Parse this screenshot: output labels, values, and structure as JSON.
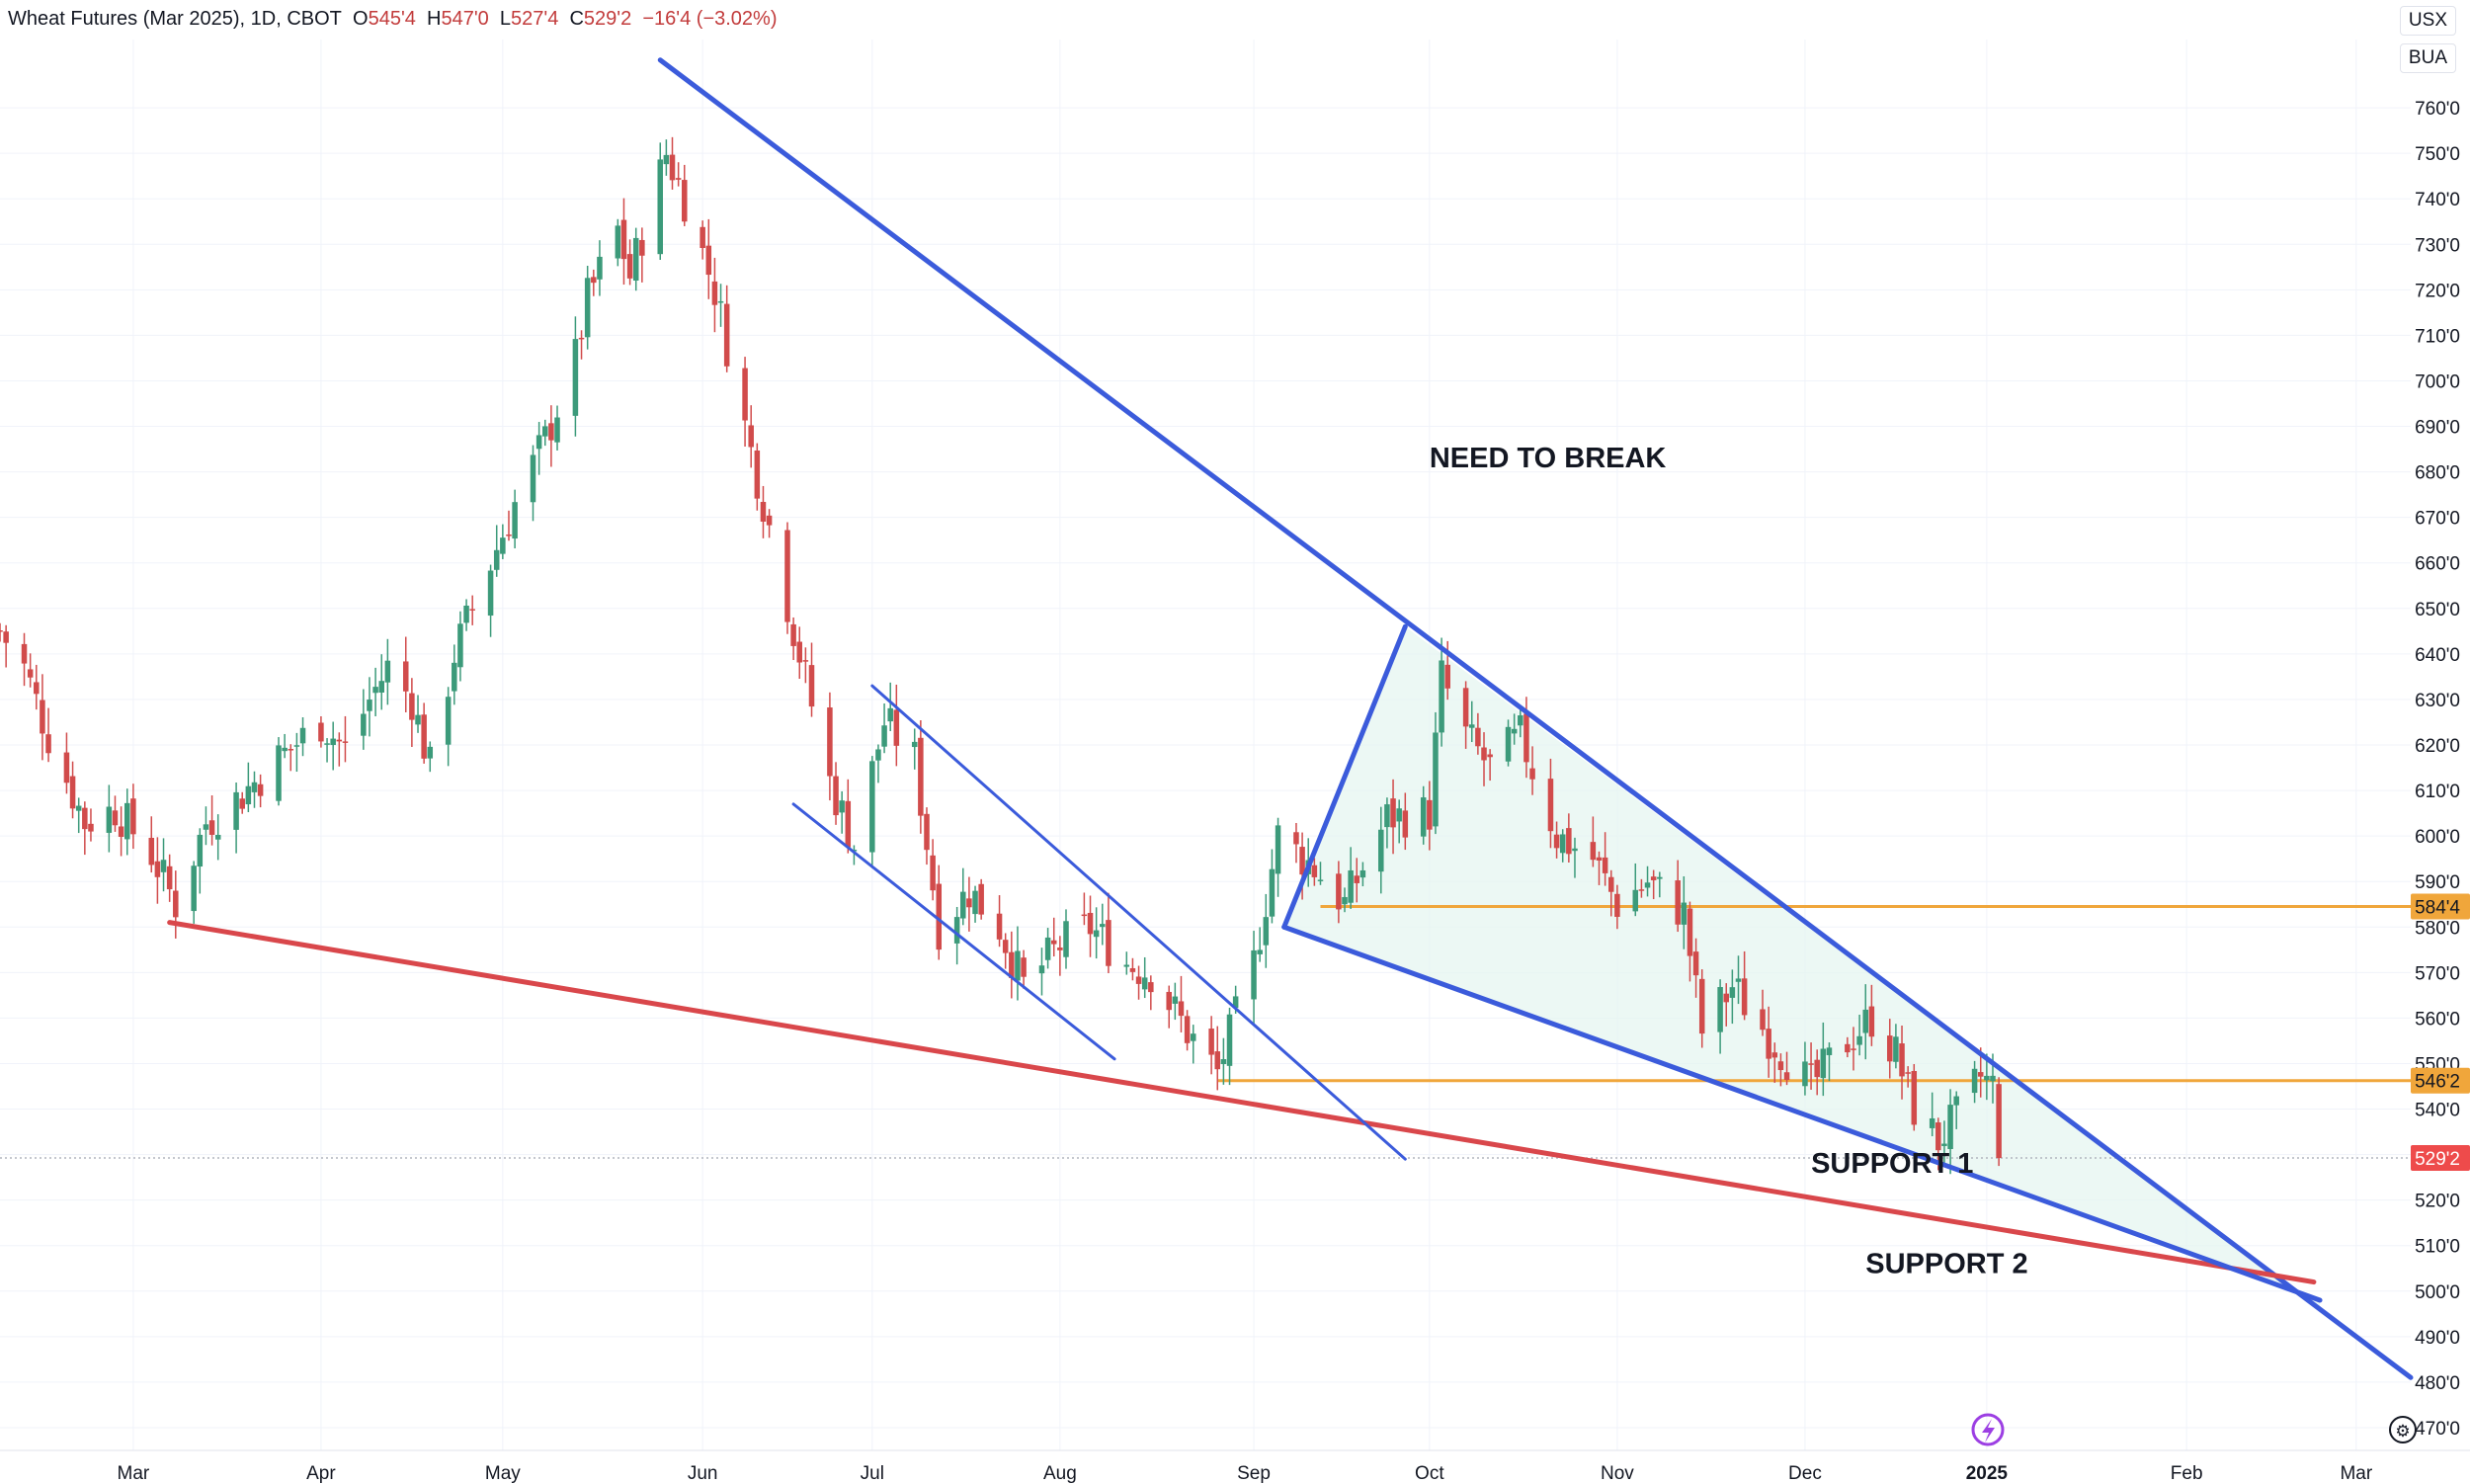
{
  "header": {
    "symbol": "Wheat Futures (Mar 2025), 1D, CBOT",
    "o_label": "O",
    "o_value": "545'4",
    "h_label": "H",
    "h_value": "547'0",
    "l_label": "L",
    "l_value": "527'4",
    "c_label": "C",
    "c_value": "529'2",
    "change": "−16'4 (−3.02%)"
  },
  "units": {
    "currency": "USX",
    "quote": "BUA"
  },
  "colors": {
    "up": "#3c9a7a",
    "down": "#d14b4b",
    "trendline": "#3b5bdb",
    "support_red": "#d9474b",
    "level": "#f0a63b",
    "wedge_fill": "#e4f5f0",
    "current_price_bg": "#ee4b4b"
  },
  "chart_data": {
    "type": "candlestick",
    "price_unit": "cents per bushel",
    "ylim": [
      465,
      775
    ],
    "y_ticks": [
      "470'0",
      "480'0",
      "490'0",
      "500'0",
      "510'0",
      "520'0",
      "530'0",
      "540'0",
      "550'0",
      "560'0",
      "570'0",
      "580'0",
      "590'0",
      "600'0",
      "610'0",
      "620'0",
      "630'0",
      "640'0",
      "650'0",
      "660'0",
      "670'0",
      "680'0",
      "690'0",
      "700'0",
      "710'0",
      "720'0",
      "730'0",
      "740'0",
      "750'0",
      "760'0"
    ],
    "x_range": [
      "2024-02-08",
      "2025-03-12"
    ],
    "x_ticks": [
      {
        "date": "2024-03-01",
        "label": "Mar"
      },
      {
        "date": "2024-04-01",
        "label": "Apr"
      },
      {
        "date": "2024-05-01",
        "label": "May"
      },
      {
        "date": "2024-06-03",
        "label": "Jun"
      },
      {
        "date": "2024-07-01",
        "label": "Jul"
      },
      {
        "date": "2024-08-01",
        "label": "Aug"
      },
      {
        "date": "2024-09-02",
        "label": "Sep"
      },
      {
        "date": "2024-10-01",
        "label": "Oct"
      },
      {
        "date": "2024-11-01",
        "label": "Nov"
      },
      {
        "date": "2024-12-02",
        "label": "Dec"
      },
      {
        "date": "2025-01-01",
        "label": "2025"
      },
      {
        "date": "2025-02-03",
        "label": "Feb"
      },
      {
        "date": "2025-03-03",
        "label": "Mar"
      }
    ],
    "price_path": [
      [
        "2024-02-08",
        645
      ],
      [
        "2024-02-12",
        637
      ],
      [
        "2024-02-16",
        622
      ],
      [
        "2024-02-22",
        603
      ],
      [
        "2024-02-27",
        606
      ],
      [
        "2024-03-04",
        596
      ],
      [
        "2024-03-08",
        585
      ],
      [
        "2024-03-13",
        603
      ],
      [
        "2024-03-18",
        608
      ],
      [
        "2024-03-25",
        617
      ],
      [
        "2024-04-01",
        625
      ],
      [
        "2024-04-05",
        619
      ],
      [
        "2024-04-09",
        630
      ],
      [
        "2024-04-12",
        637
      ],
      [
        "2024-04-16",
        630
      ],
      [
        "2024-04-19",
        615
      ],
      [
        "2024-04-23",
        640
      ],
      [
        "2024-04-29",
        660
      ],
      [
        "2024-05-03",
        673
      ],
      [
        "2024-05-08",
        687
      ],
      [
        "2024-05-13",
        705
      ],
      [
        "2024-05-15",
        718
      ],
      [
        "2024-05-20",
        733
      ],
      [
        "2024-05-22",
        723
      ],
      [
        "2024-05-28",
        750
      ],
      [
        "2024-05-31",
        740
      ],
      [
        "2024-06-05",
        720
      ],
      [
        "2024-06-10",
        690
      ],
      [
        "2024-06-14",
        668
      ],
      [
        "2024-06-19",
        640
      ],
      [
        "2024-06-24",
        612
      ],
      [
        "2024-06-28",
        598
      ],
      [
        "2024-07-03",
        625
      ],
      [
        "2024-07-08",
        617
      ],
      [
        "2024-07-12",
        580
      ],
      [
        "2024-07-17",
        588
      ],
      [
        "2024-07-22",
        580
      ],
      [
        "2024-07-26",
        567
      ],
      [
        "2024-08-01",
        576
      ],
      [
        "2024-08-06",
        580
      ],
      [
        "2024-08-12",
        572
      ],
      [
        "2024-08-16",
        570
      ],
      [
        "2024-08-22",
        557
      ],
      [
        "2024-08-27",
        548
      ],
      [
        "2024-09-02",
        572
      ],
      [
        "2024-09-06",
        600
      ],
      [
        "2024-09-12",
        593
      ],
      [
        "2024-09-17",
        585
      ],
      [
        "2024-09-24",
        604
      ],
      [
        "2024-10-01",
        605
      ],
      [
        "2024-10-03",
        635
      ],
      [
        "2024-10-07",
        622
      ],
      [
        "2024-10-11",
        615
      ],
      [
        "2024-10-16",
        622
      ],
      [
        "2024-10-22",
        600
      ],
      [
        "2024-10-28",
        595
      ],
      [
        "2024-11-01",
        585
      ],
      [
        "2024-11-06",
        590
      ],
      [
        "2024-11-12",
        583
      ],
      [
        "2024-11-15",
        557
      ],
      [
        "2024-11-20",
        567
      ],
      [
        "2024-11-26",
        556
      ],
      [
        "2024-12-03",
        545
      ],
      [
        "2024-12-09",
        555
      ],
      [
        "2024-12-13",
        560
      ],
      [
        "2024-12-17",
        552
      ],
      [
        "2024-12-20",
        540
      ],
      [
        "2024-12-24",
        533
      ],
      [
        "2024-12-27",
        538
      ],
      [
        "2024-12-31",
        547
      ],
      [
        "2025-01-02",
        545
      ]
    ],
    "last_candle": {
      "date": "2025-01-03",
      "open": 545.5,
      "high": 547,
      "low": 527.5,
      "close": 529.25
    },
    "horizontal_levels": [
      {
        "value": 584.5,
        "label": "584'4",
        "from": "2024-09-13"
      },
      {
        "value": 546.25,
        "label": "546'2",
        "from": "2024-08-27"
      }
    ],
    "current_price": {
      "value": 529.25,
      "label": "529'2"
    },
    "trendlines": [
      {
        "name": "resistance",
        "points": [
          [
            "2024-05-27",
            770.5
          ],
          [
            "2025-03-12",
            481
          ]
        ]
      },
      {
        "name": "support-2",
        "points": [
          [
            "2024-03-07",
            581
          ],
          [
            "2025-02-24",
            502
          ]
        ]
      },
      {
        "name": "channel-upper",
        "points": [
          [
            "2024-07-01",
            633
          ],
          [
            "2024-09-27",
            529
          ]
        ]
      },
      {
        "name": "channel-lower",
        "points": [
          [
            "2024-06-18",
            607
          ],
          [
            "2024-08-10",
            551
          ]
        ]
      },
      {
        "name": "wedge-left",
        "points": [
          [
            "2024-09-07",
            580
          ],
          [
            "2024-09-27",
            646
          ]
        ]
      },
      {
        "name": "wedge-lower",
        "points": [
          [
            "2024-09-07",
            580
          ],
          [
            "2025-02-25",
            498
          ]
        ]
      }
    ],
    "annotations": [
      {
        "text": "NEED TO BREAK",
        "x": "2024-10-01",
        "y": 681
      },
      {
        "text": "SUPPORT 1",
        "x": "2024-12-03",
        "y": 526
      },
      {
        "text": "SUPPORT 2",
        "x": "2024-12-12",
        "y": 504
      }
    ]
  }
}
